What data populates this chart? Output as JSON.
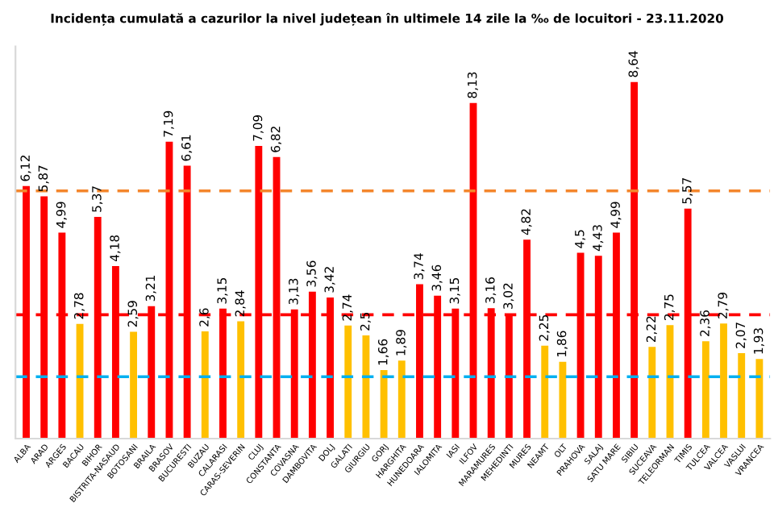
{
  "chart_data": {
    "type": "bar",
    "title": "Incidența cumulată a cazurilor la nivel județean în ultimele 14 zile la ‰ de locuitori - 23.11.2020",
    "categories": [
      "ALBA",
      "ARAD",
      "ARGES",
      "BACAU",
      "BIHOR",
      "BISTRITA-NASAUD",
      "BOTOSANI",
      "BRAILA",
      "BRASOV",
      "BUCURESTI",
      "BUZAU",
      "CALARASI",
      "CARAS-SEVERIN",
      "CLUJ",
      "CONSTANTA",
      "COVASNA",
      "DAMBOVITA",
      "DOLJ",
      "GALATI",
      "GIURGIU",
      "GORJ",
      "HARGHITA",
      "HUNEDOARA",
      "IALOMITA",
      "IASI",
      "ILFOV",
      "MARAMURES",
      "MEHEDINTI",
      "MURES",
      "NEAMT",
      "OLT",
      "PRAHOVA",
      "SALAJ",
      "SATU MARE",
      "SIBIU",
      "SUCEAVA",
      "TELEORMAN",
      "TIMIS",
      "TULCEA",
      "VALCEA",
      "VASLUI",
      "VRANCEA"
    ],
    "values": [
      6.12,
      5.87,
      4.99,
      2.78,
      5.37,
      4.18,
      2.59,
      3.21,
      7.19,
      6.61,
      2.6,
      3.15,
      2.84,
      7.09,
      6.82,
      3.13,
      3.56,
      3.42,
      2.74,
      2.5,
      1.66,
      1.89,
      3.74,
      3.46,
      3.15,
      8.13,
      3.16,
      3.02,
      4.82,
      2.25,
      1.86,
      4.5,
      4.43,
      4.99,
      8.64,
      2.22,
      2.75,
      5.57,
      2.36,
      2.79,
      2.07,
      1.93
    ],
    "value_labels": [
      "6,12",
      "5,87",
      "4,99",
      "2,78",
      "5,37",
      "4,18",
      "2,59",
      "3,21",
      "7,19",
      "6,61",
      "2,6",
      "3,15",
      "2,84",
      "7,09",
      "6,82",
      "3,13",
      "3,56",
      "3,42",
      "2,74",
      "2,5",
      "1,66",
      "1,89",
      "3,74",
      "3,46",
      "3,15",
      "8,13",
      "3,16",
      "3,02",
      "4,82",
      "2,25",
      "1,86",
      "4,5",
      "4,43",
      "4,99",
      "8,64",
      "2,22",
      "2,75",
      "5,57",
      "2,36",
      "2,79",
      "2,07",
      "1,93"
    ],
    "colors": [
      "#ff0000",
      "#ff0000",
      "#ff0000",
      "#ffc000",
      "#ff0000",
      "#ff0000",
      "#ffc000",
      "#ff0000",
      "#ff0000",
      "#ff0000",
      "#ffc000",
      "#ff0000",
      "#ffc000",
      "#ff0000",
      "#ff0000",
      "#ff0000",
      "#ff0000",
      "#ff0000",
      "#ffc000",
      "#ffc000",
      "#ffc000",
      "#ffc000",
      "#ff0000",
      "#ff0000",
      "#ff0000",
      "#ff0000",
      "#ff0000",
      "#ff0000",
      "#ff0000",
      "#ffc000",
      "#ffc000",
      "#ff0000",
      "#ff0000",
      "#ff0000",
      "#ff0000",
      "#ffc000",
      "#ffc000",
      "#ff0000",
      "#ffc000",
      "#ffc000",
      "#ffc000",
      "#ffc000"
    ],
    "ylim": [
      0,
      9.5
    ],
    "tick_labels": "x",
    "grid": false,
    "legend": false,
    "ref_lines": [
      {
        "axis": "y",
        "value": 6,
        "color": "#f4862c",
        "line_style": "dashed"
      },
      {
        "axis": "y",
        "value": 3,
        "color": "#ff0000",
        "line_style": "dashed"
      },
      {
        "axis": "y",
        "value": 1.5,
        "color": "#00b0f0",
        "line_style": "dashed"
      }
    ]
  }
}
